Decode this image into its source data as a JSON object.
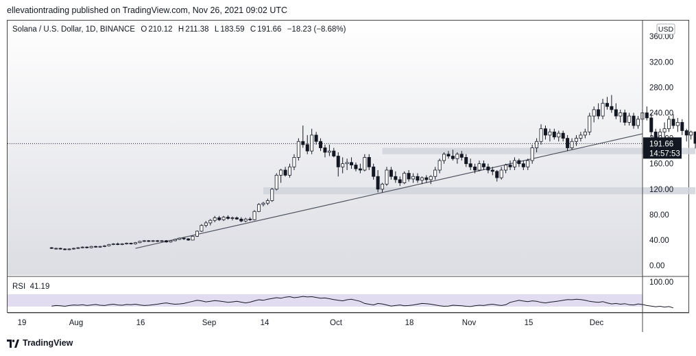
{
  "publisher_line": "ellevationtrading published on TradingView.com, Nov 26, 2021 09:02 UTC",
  "legend": {
    "symbol": "Solana / U.S. Dollar, 1D, BINANCE",
    "open_label": "O",
    "open": "210.12",
    "high_label": "H",
    "high": "211.38",
    "low_label": "L",
    "low": "183.59",
    "close_label": "C",
    "close": "191.66",
    "change": "−18.23 (−8.68%)"
  },
  "rsi": {
    "label": "RSI",
    "value": "41.19",
    "axis_label": "100.00"
  },
  "price_tag": {
    "price": "191.66",
    "countdown": "14:57:53"
  },
  "currency": "USD",
  "brand": "TradingView",
  "colors": {
    "up": "#ffffff",
    "down": "#131722",
    "zone": "#d1d4dc",
    "rsi_band": "#e1dcef",
    "rsi_line": "#131722",
    "trend": "#50535e"
  },
  "chart_data": {
    "type": "candlestick",
    "title": "Solana / U.S. Dollar, 1D, BINANCE",
    "y_ticks": [
      "360.00",
      "320.00",
      "280.00",
      "240.00",
      "200.00",
      "160.00",
      "120.00",
      "80.00",
      "40.00",
      "0.00"
    ],
    "x_ticks": [
      "19",
      "Aug",
      "16",
      "Sep",
      "14",
      "Oct",
      "18",
      "Nov",
      "15",
      "Dec"
    ],
    "ylim": [
      -15,
      385
    ],
    "x_range": [
      "2021-07-19",
      "2021-12-10"
    ],
    "last_price": 191.66,
    "support_zones": [
      {
        "from": 175,
        "to": 185,
        "start": "2021-09-30",
        "end": "2021-12-10"
      },
      {
        "from": 112,
        "to": 123,
        "start": "2021-09-03",
        "end": "2021-12-10"
      }
    ],
    "trendline": {
      "start": {
        "date": "2021-08-05",
        "price": 27
      },
      "end": {
        "date": "2021-11-28",
        "price": 207
      }
    },
    "candles": [
      [
        "2021-07-17",
        28,
        29,
        26,
        27
      ],
      [
        "2021-07-18",
        27,
        28,
        25,
        27
      ],
      [
        "2021-07-19",
        27,
        28,
        25,
        26
      ],
      [
        "2021-07-20",
        26,
        27,
        24,
        25
      ],
      [
        "2021-07-21",
        25,
        27,
        24,
        26
      ],
      [
        "2021-07-22",
        26,
        28,
        25,
        27
      ],
      [
        "2021-07-23",
        27,
        29,
        26,
        28
      ],
      [
        "2021-07-24",
        28,
        30,
        27,
        29
      ],
      [
        "2021-07-25",
        29,
        30,
        27,
        28
      ],
      [
        "2021-07-26",
        28,
        31,
        27,
        30
      ],
      [
        "2021-07-27",
        30,
        31,
        28,
        29
      ],
      [
        "2021-07-28",
        29,
        31,
        28,
        30
      ],
      [
        "2021-07-29",
        30,
        32,
        29,
        31
      ],
      [
        "2021-07-30",
        31,
        34,
        30,
        33
      ],
      [
        "2021-07-31",
        33,
        35,
        32,
        34
      ],
      [
        "2021-08-01",
        34,
        36,
        32,
        33
      ],
      [
        "2021-08-02",
        33,
        35,
        32,
        34
      ],
      [
        "2021-08-03",
        34,
        36,
        33,
        35
      ],
      [
        "2021-08-04",
        35,
        36,
        33,
        34
      ],
      [
        "2021-08-05",
        34,
        37,
        33,
        36
      ],
      [
        "2021-08-06",
        36,
        39,
        35,
        38
      ],
      [
        "2021-08-07",
        38,
        40,
        37,
        39
      ],
      [
        "2021-08-08",
        39,
        40,
        37,
        38
      ],
      [
        "2021-08-09",
        38,
        40,
        37,
        39
      ],
      [
        "2021-08-10",
        39,
        40,
        37,
        38
      ],
      [
        "2021-08-11",
        38,
        40,
        37,
        39
      ],
      [
        "2021-08-12",
        39,
        40,
        36,
        37
      ],
      [
        "2021-08-13",
        37,
        40,
        36,
        39
      ],
      [
        "2021-08-14",
        39,
        42,
        38,
        41
      ],
      [
        "2021-08-15",
        41,
        44,
        40,
        43
      ],
      [
        "2021-08-16",
        43,
        44,
        40,
        42
      ],
      [
        "2021-08-17",
        42,
        43,
        39,
        40
      ],
      [
        "2021-08-18",
        40,
        47,
        40,
        46
      ],
      [
        "2021-08-19",
        46,
        55,
        45,
        54
      ],
      [
        "2021-08-20",
        54,
        65,
        53,
        63
      ],
      [
        "2021-08-21",
        63,
        70,
        60,
        67
      ],
      [
        "2021-08-22",
        67,
        73,
        63,
        71
      ],
      [
        "2021-08-23",
        71,
        78,
        68,
        75
      ],
      [
        "2021-08-24",
        75,
        78,
        70,
        72
      ],
      [
        "2021-08-25",
        72,
        78,
        70,
        76
      ],
      [
        "2021-08-26",
        76,
        79,
        72,
        74
      ],
      [
        "2021-08-27",
        74,
        77,
        71,
        75
      ],
      [
        "2021-08-28",
        75,
        77,
        72,
        73
      ],
      [
        "2021-08-29",
        73,
        76,
        68,
        70
      ],
      [
        "2021-08-30",
        70,
        75,
        68,
        73
      ],
      [
        "2021-08-31",
        73,
        76,
        70,
        72
      ],
      [
        "2021-09-01",
        72,
        87,
        71,
        85
      ],
      [
        "2021-09-02",
        85,
        98,
        84,
        96
      ],
      [
        "2021-09-03",
        96,
        100,
        93,
        98
      ],
      [
        "2021-09-04",
        98,
        105,
        95,
        102
      ],
      [
        "2021-09-05",
        102,
        122,
        100,
        120
      ],
      [
        "2021-09-06",
        120,
        145,
        118,
        142
      ],
      [
        "2021-09-07",
        142,
        152,
        130,
        150
      ],
      [
        "2021-09-08",
        150,
        155,
        140,
        142
      ],
      [
        "2021-09-09",
        142,
        160,
        138,
        155
      ],
      [
        "2021-09-10",
        155,
        175,
        150,
        170
      ],
      [
        "2021-09-11",
        170,
        200,
        165,
        195
      ],
      [
        "2021-09-12",
        195,
        220,
        185,
        190
      ],
      [
        "2021-09-13",
        190,
        205,
        175,
        180
      ],
      [
        "2021-09-14",
        180,
        215,
        175,
        205
      ],
      [
        "2021-09-15",
        205,
        210,
        190,
        195
      ],
      [
        "2021-09-16",
        195,
        200,
        180,
        185
      ],
      [
        "2021-09-17",
        185,
        190,
        170,
        178
      ],
      [
        "2021-09-18",
        178,
        190,
        172,
        180
      ],
      [
        "2021-09-19",
        180,
        185,
        170,
        172
      ],
      [
        "2021-09-20",
        172,
        178,
        140,
        155
      ],
      [
        "2021-09-21",
        155,
        170,
        145,
        160
      ],
      [
        "2021-09-22",
        160,
        168,
        150,
        162
      ],
      [
        "2021-09-23",
        162,
        170,
        152,
        158
      ],
      [
        "2021-09-24",
        158,
        162,
        148,
        152
      ],
      [
        "2021-09-25",
        152,
        160,
        145,
        150
      ],
      [
        "2021-09-26",
        150,
        175,
        148,
        170
      ],
      [
        "2021-09-27",
        170,
        175,
        150,
        155
      ],
      [
        "2021-09-28",
        155,
        160,
        135,
        140
      ],
      [
        "2021-09-29",
        140,
        150,
        115,
        120
      ],
      [
        "2021-09-30",
        120,
        130,
        115,
        128
      ],
      [
        "2021-10-01",
        128,
        155,
        125,
        150
      ],
      [
        "2021-10-02",
        150,
        155,
        135,
        140
      ],
      [
        "2021-10-03",
        140,
        148,
        130,
        135
      ],
      [
        "2021-10-04",
        135,
        140,
        125,
        130
      ],
      [
        "2021-10-05",
        130,
        148,
        128,
        145
      ],
      [
        "2021-10-06",
        145,
        150,
        132,
        136
      ],
      [
        "2021-10-07",
        136,
        145,
        130,
        140
      ],
      [
        "2021-10-08",
        140,
        145,
        130,
        134
      ],
      [
        "2021-10-09",
        134,
        140,
        128,
        138
      ],
      [
        "2021-10-10",
        138,
        142,
        130,
        135
      ],
      [
        "2021-10-11",
        135,
        142,
        128,
        140
      ],
      [
        "2021-10-12",
        140,
        155,
        135,
        150
      ],
      [
        "2021-10-13",
        150,
        168,
        145,
        165
      ],
      [
        "2021-10-14",
        165,
        178,
        160,
        175
      ],
      [
        "2021-10-15",
        175,
        180,
        168,
        172
      ],
      [
        "2021-10-16",
        172,
        182,
        165,
        168
      ],
      [
        "2021-10-17",
        168,
        178,
        160,
        175
      ],
      [
        "2021-10-18",
        175,
        180,
        165,
        170
      ],
      [
        "2021-10-19",
        170,
        175,
        155,
        160
      ],
      [
        "2021-10-20",
        160,
        168,
        150,
        155
      ],
      [
        "2021-10-21",
        155,
        160,
        145,
        150
      ],
      [
        "2021-10-22",
        150,
        165,
        148,
        160
      ],
      [
        "2021-10-23",
        160,
        165,
        150,
        155
      ],
      [
        "2021-10-24",
        155,
        160,
        145,
        150
      ],
      [
        "2021-10-25",
        150,
        155,
        142,
        148
      ],
      [
        "2021-10-26",
        148,
        150,
        132,
        138
      ],
      [
        "2021-10-27",
        138,
        155,
        135,
        150
      ],
      [
        "2021-10-28",
        150,
        160,
        145,
        158
      ],
      [
        "2021-10-29",
        158,
        165,
        150,
        155
      ],
      [
        "2021-10-30",
        155,
        170,
        150,
        165
      ],
      [
        "2021-10-31",
        165,
        168,
        155,
        160
      ],
      [
        "2021-11-01",
        160,
        165,
        150,
        155
      ],
      [
        "2021-11-02",
        155,
        168,
        150,
        165
      ],
      [
        "2021-11-03",
        165,
        190,
        160,
        185
      ],
      [
        "2021-11-04",
        185,
        200,
        178,
        195
      ],
      [
        "2021-11-05",
        195,
        222,
        190,
        215
      ],
      [
        "2021-11-06",
        215,
        220,
        198,
        205
      ],
      [
        "2021-11-07",
        205,
        215,
        195,
        210
      ],
      [
        "2021-11-08",
        210,
        215,
        198,
        202
      ],
      [
        "2021-11-09",
        202,
        212,
        195,
        208
      ],
      [
        "2021-11-10",
        208,
        212,
        195,
        200
      ],
      [
        "2021-11-11",
        200,
        205,
        180,
        185
      ],
      [
        "2021-11-12",
        185,
        200,
        182,
        195
      ],
      [
        "2021-11-13",
        195,
        205,
        188,
        200
      ],
      [
        "2021-11-14",
        200,
        210,
        195,
        205
      ],
      [
        "2021-11-15",
        205,
        215,
        200,
        210
      ],
      [
        "2021-11-16",
        210,
        240,
        205,
        235
      ],
      [
        "2021-11-17",
        235,
        250,
        225,
        245
      ],
      [
        "2021-11-18",
        245,
        255,
        230,
        235
      ],
      [
        "2021-11-19",
        235,
        262,
        230,
        255
      ],
      [
        "2021-11-20",
        255,
        265,
        245,
        250
      ],
      [
        "2021-11-21",
        250,
        268,
        240,
        245
      ],
      [
        "2021-11-22",
        245,
        255,
        230,
        235
      ],
      [
        "2021-11-23",
        235,
        245,
        225,
        240
      ],
      [
        "2021-11-24",
        240,
        245,
        220,
        225
      ],
      [
        "2021-11-25",
        225,
        240,
        220,
        235
      ],
      [
        "2021-11-26",
        235,
        240,
        215,
        220
      ],
      [
        "2021-11-27",
        220,
        235,
        215,
        230
      ],
      [
        "2021-11-28",
        230,
        245,
        225,
        240
      ],
      [
        "2021-11-29",
        240,
        250,
        228,
        232
      ],
      [
        "2021-11-30",
        232,
        240,
        200,
        210
      ],
      [
        "2021-12-01",
        210,
        215,
        185,
        190
      ],
      [
        "2021-12-02",
        190,
        215,
        188,
        210
      ],
      [
        "2021-12-03",
        210,
        225,
        200,
        215
      ],
      [
        "2021-12-04",
        215,
        235,
        210,
        230
      ],
      [
        "2021-12-05",
        230,
        238,
        215,
        220
      ],
      [
        "2021-12-06",
        220,
        232,
        210,
        225
      ],
      [
        "2021-12-07",
        225,
        230,
        205,
        212
      ],
      [
        "2021-12-08",
        212,
        215,
        195,
        205
      ],
      [
        "2021-12-09",
        205,
        212,
        198,
        210
      ],
      [
        "2021-12-10",
        210,
        211,
        184,
        192
      ]
    ],
    "rsi_series": [
      48,
      50,
      49,
      47,
      50,
      52,
      51,
      53,
      50,
      52,
      54,
      51,
      50,
      53,
      55,
      52,
      51,
      54,
      53,
      55,
      52,
      50,
      51,
      53,
      55,
      58,
      60,
      57,
      55,
      56,
      58,
      62,
      66,
      70,
      68,
      64,
      66,
      69,
      67,
      65,
      62,
      64,
      66,
      63,
      60,
      63,
      68,
      72,
      70,
      74,
      77,
      80,
      78,
      82,
      84,
      80,
      82,
      85,
      83,
      84,
      81,
      78,
      79,
      76,
      73,
      70,
      68,
      72,
      74,
      70,
      66,
      58,
      55,
      52,
      58,
      56,
      52,
      48,
      50,
      52,
      49,
      50,
      52,
      55,
      58,
      57,
      55,
      52,
      49,
      47,
      48,
      51,
      50,
      49,
      47,
      46,
      49,
      51,
      50,
      53,
      55,
      52,
      50,
      53,
      62,
      66,
      70,
      67,
      65,
      68,
      66,
      62,
      60,
      63,
      65,
      67,
      70,
      73,
      72,
      74,
      73,
      70,
      66,
      64,
      62,
      65,
      60,
      56,
      58,
      55,
      57,
      53,
      52,
      56,
      54,
      50,
      48,
      45,
      47,
      44,
      46,
      41
    ]
  }
}
